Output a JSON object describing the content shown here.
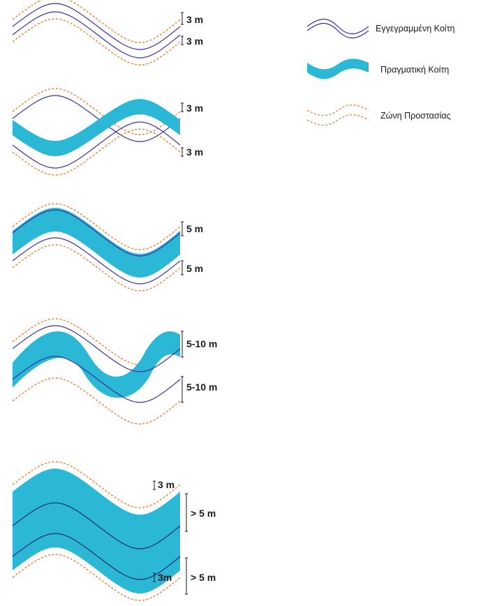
{
  "colors": {
    "registered_bed": "#3b2f9e",
    "actual_bed": "#2bb7d6",
    "protection_zone": "#f07a2e",
    "dimension_text": "#1a1a1a"
  },
  "legend": {
    "registered_bed": "Εγγεγραμμένη Κοίτη",
    "actual_bed": "Πραγματική Κοίτη",
    "protection_zone": "Ζώνη Προστασίας"
  },
  "scenario_1": {
    "upper_offset": "3 m",
    "lower_offset": "3 m"
  },
  "scenario_2": {
    "upper_offset": "3 m",
    "lower_offset": "3 m"
  },
  "scenario_3": {
    "upper_offset": "5 m",
    "lower_offset": "5 m"
  },
  "scenario_4": {
    "upper_offset": "5-10 m",
    "lower_offset": "5-10 m"
  },
  "scenario_5": {
    "upper_zone": "3 m",
    "upper_offset": "> 5 m",
    "lower_zone": "3m",
    "lower_offset": "> 5 m"
  }
}
